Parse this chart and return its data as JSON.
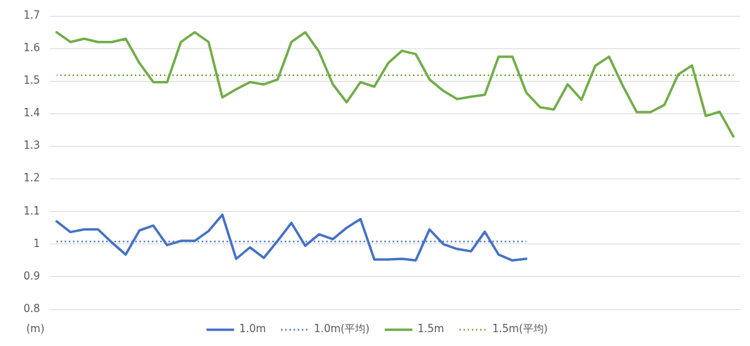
{
  "chart_data": {
    "type": "line",
    "ylabel": "(m)",
    "categories": [
      null,
      null,
      null,
      null,
      null,
      null,
      null,
      null,
      null,
      null,
      null,
      null,
      null,
      null,
      null,
      null,
      null,
      null,
      null,
      null,
      null,
      null,
      null,
      null,
      null,
      null,
      null,
      null,
      null,
      null,
      null,
      null,
      null,
      null,
      null,
      null,
      null,
      null,
      null,
      null,
      null,
      null,
      null,
      null,
      null,
      null,
      null,
      null,
      null,
      null
    ],
    "ylim": [
      0.8,
      1.7
    ],
    "yticks": [
      0.8,
      0.9,
      {
        "value": 1,
        "label": "1"
      },
      1.1,
      1.2,
      1.3,
      1.4,
      1.5,
      1.6,
      1.7
    ],
    "grid": "y",
    "legend": "bottom",
    "marker": "none",
    "series": [
      {
        "name": "1.0m",
        "color": "#4472c4",
        "line_style": "solid",
        "values": [
          1.07,
          1.037,
          1.045,
          1.045,
          1.005,
          0.968,
          1.042,
          1.057,
          0.997,
          1.01,
          1.01,
          1.04,
          1.09,
          0.955,
          0.99,
          0.958,
          1.01,
          1.065,
          0.995,
          1.03,
          1.015,
          1.05,
          1.077,
          0.953,
          0.953,
          0.955,
          0.95,
          1.045,
          1.0,
          0.985,
          0.978,
          1.038,
          0.968,
          0.95,
          0.955,
          null,
          null,
          null,
          null,
          null,
          null,
          null,
          null,
          null,
          null,
          null,
          null,
          null,
          null,
          null
        ]
      },
      {
        "name": "1.0m(平均)",
        "color": "#4472c4",
        "line_style": "dotted",
        "values": [
          1.008,
          1.008,
          1.008,
          1.008,
          1.008,
          1.008,
          1.008,
          1.008,
          1.008,
          1.008,
          1.008,
          1.008,
          1.008,
          1.008,
          1.008,
          1.008,
          1.008,
          1.008,
          1.008,
          1.008,
          1.008,
          1.008,
          1.008,
          1.008,
          1.008,
          1.008,
          1.008,
          1.008,
          1.008,
          1.008,
          1.008,
          1.008,
          1.008,
          1.008,
          1.008,
          null,
          null,
          null,
          null,
          null,
          null,
          null,
          null,
          null,
          null,
          null,
          null,
          null,
          null,
          null
        ]
      },
      {
        "name": "1.5m",
        "color": "#70ad47",
        "line_style": "solid",
        "values": [
          1.65,
          1.62,
          1.63,
          1.62,
          1.62,
          1.63,
          1.555,
          1.497,
          1.497,
          1.62,
          1.65,
          1.62,
          1.45,
          1.475,
          1.497,
          1.49,
          1.505,
          1.62,
          1.65,
          1.59,
          1.49,
          1.435,
          1.497,
          1.483,
          1.555,
          1.593,
          1.583,
          1.505,
          1.47,
          1.445,
          1.452,
          1.458,
          1.575,
          1.575,
          1.465,
          1.42,
          1.413,
          1.49,
          1.443,
          1.547,
          1.575,
          1.485,
          1.405,
          1.405,
          1.427,
          1.52,
          1.548,
          1.393,
          1.406,
          1.33
        ]
      },
      {
        "name": "1.5m(平均)",
        "color": "#70ad47",
        "line_style": "dotted",
        "values": [
          1.518,
          1.518,
          1.518,
          1.518,
          1.518,
          1.518,
          1.518,
          1.518,
          1.518,
          1.518,
          1.518,
          1.518,
          1.518,
          1.518,
          1.518,
          1.518,
          1.518,
          1.518,
          1.518,
          1.518,
          1.518,
          1.518,
          1.518,
          1.518,
          1.518,
          1.518,
          1.518,
          1.518,
          1.518,
          1.518,
          1.518,
          1.518,
          1.518,
          1.518,
          1.518,
          1.518,
          1.518,
          1.518,
          1.518,
          1.518,
          1.518,
          1.518,
          1.518,
          1.518,
          1.518,
          1.518,
          1.518,
          1.518,
          1.518,
          1.518
        ]
      }
    ]
  }
}
